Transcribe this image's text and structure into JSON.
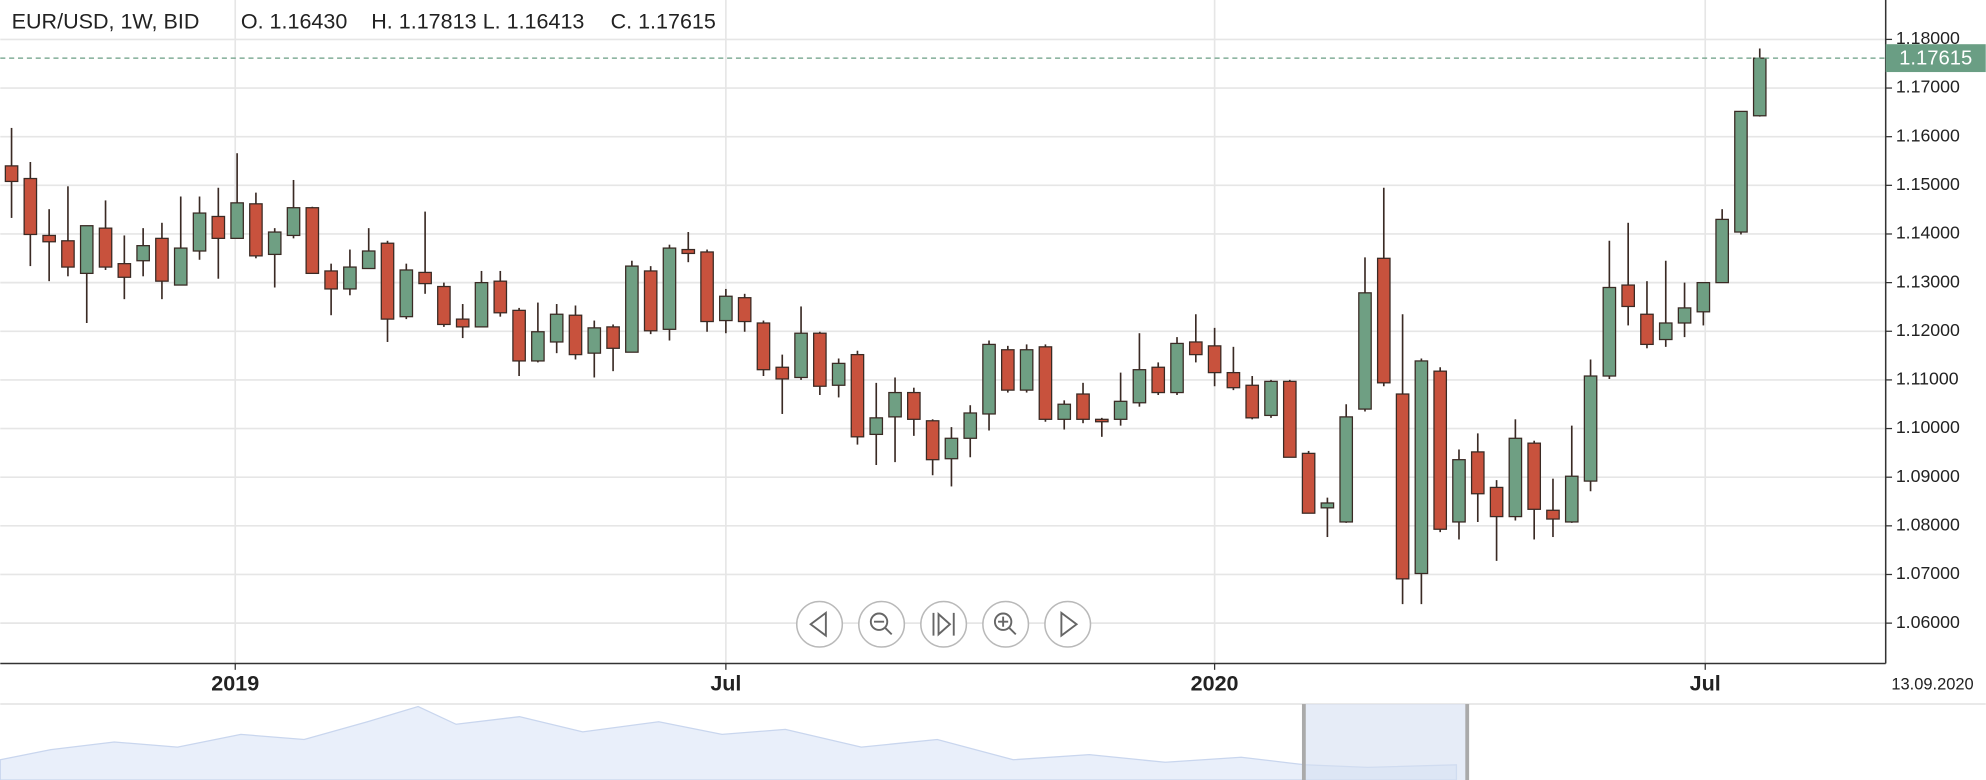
{
  "chart_data": {
    "type": "candlestick",
    "title": "EUR/USD, 1W, BID",
    "last_labels": {
      "open": "O. 1.16430",
      "high": "H. 1.17813",
      "low": "L. 1.16413",
      "close": "C. 1.17615"
    },
    "range_end": "13.09.2020",
    "colors": {
      "up": "#6f9f83",
      "down": "#c8523d",
      "outline": "#3a2a24",
      "last_price": "#6a9e84"
    },
    "grid": true,
    "categories": [
      null,
      null,
      null,
      null,
      null,
      null,
      null,
      null,
      null,
      null,
      null,
      null,
      null,
      null,
      null,
      null,
      null,
      null,
      null,
      null,
      null,
      null,
      null,
      null,
      null,
      null,
      null,
      null,
      null,
      null,
      null,
      null,
      null,
      null,
      null,
      null,
      null,
      null,
      null,
      null,
      null,
      null,
      null,
      null,
      null,
      null,
      null,
      null,
      null,
      null,
      null,
      null,
      null,
      null,
      null,
      null,
      null,
      null,
      null,
      null,
      null,
      null,
      null,
      null,
      null,
      null,
      null,
      null,
      null,
      null,
      null,
      null,
      null,
      null,
      null,
      null,
      null,
      null,
      null,
      null,
      null,
      null,
      null,
      null,
      null,
      null,
      null,
      null,
      null,
      null,
      null,
      null,
      null,
      null
    ],
    "open": [
      1.154,
      1.1514,
      1.1397,
      1.1386,
      1.1319,
      1.1412,
      1.1339,
      1.1345,
      1.1391,
      1.1295,
      1.1365,
      1.1436,
      1.1391,
      1.1462,
      1.1358,
      1.1397,
      1.1454,
      1.1324,
      1.1287,
      1.1329,
      1.1381,
      1.123,
      1.1321,
      1.1292,
      1.1225,
      1.1209,
      1.1303,
      1.1243,
      1.1139,
      1.1178,
      1.1233,
      1.1155,
      1.1209,
      1.1157,
      1.1324,
      1.1204,
      1.1368,
      1.1363,
      1.1222,
      1.1269,
      1.1217,
      1.1126,
      1.1105,
      1.1196,
      1.1089,
      1.1152,
      1.0988,
      1.1024,
      1.1074,
      1.1016,
      1.0938,
      1.098,
      1.103,
      1.1162,
      1.1079,
      1.1168,
      1.1019,
      1.1071,
      1.1019,
      1.1019,
      1.1053,
      1.1126,
      1.1074,
      1.1178,
      1.117,
      1.1115,
      1.1089,
      1.1027,
      1.1097,
      1.0949,
      1.0837,
      1.0808,
      1.104,
      1.135,
      1.1071,
      1.0702,
      1.1118,
      1.0808,
      1.0952,
      1.0879,
      1.0819,
      1.097,
      1.0832,
      1.0808,
      1.0892,
      1.1108,
      1.1295,
      1.1235,
      1.1183,
      1.1217,
      1.124,
      1.13,
      1.1404,
      1.1643
    ],
    "high": [
      1.1618,
      1.1548,
      1.1451,
      1.1498,
      1.1417,
      1.1469,
      1.1397,
      1.1412,
      1.1423,
      1.1477,
      1.1477,
      1.1495,
      1.1566,
      1.1485,
      1.1412,
      1.1511,
      1.1456,
      1.1339,
      1.1368,
      1.1412,
      1.1386,
      1.1339,
      1.1446,
      1.13,
      1.1256,
      1.1324,
      1.1324,
      1.1248,
      1.1259,
      1.1256,
      1.1253,
      1.1222,
      1.1214,
      1.1345,
      1.1334,
      1.1378,
      1.1404,
      1.1368,
      1.1287,
      1.1277,
      1.1222,
      1.1152,
      1.1251,
      1.1199,
      1.1144,
      1.116,
      1.1094,
      1.1105,
      1.1084,
      1.1019,
      1.1003,
      1.1048,
      1.1181,
      1.117,
      1.1173,
      1.1173,
      1.1058,
      1.1094,
      1.1022,
      1.1115,
      1.1196,
      1.1136,
      1.1188,
      1.1235,
      1.1207,
      1.1168,
      1.1108,
      1.11,
      1.11,
      1.0954,
      1.0858,
      1.105,
      1.1352,
      1.1495,
      1.1235,
      1.1144,
      1.1126,
      1.0957,
      1.099,
      1.0894,
      1.1019,
      1.0975,
      1.0897,
      1.1006,
      1.1142,
      1.1386,
      1.1423,
      1.1303,
      1.1345,
      1.13,
      1.13,
      1.1451,
      1.1652,
      1.17813
    ],
    "low": [
      1.1433,
      1.1334,
      1.1303,
      1.1313,
      1.1217,
      1.1326,
      1.1266,
      1.1313,
      1.1266,
      1.1295,
      1.1347,
      1.1308,
      1.1391,
      1.135,
      1.129,
      1.1391,
      1.1319,
      1.1233,
      1.1274,
      1.1329,
      1.1178,
      1.1225,
      1.1277,
      1.1209,
      1.1186,
      1.1209,
      1.123,
      1.1108,
      1.1136,
      1.1155,
      1.1142,
      1.1105,
      1.1118,
      1.1157,
      1.1194,
      1.1181,
      1.1342,
      1.1199,
      1.1196,
      1.1199,
      1.1108,
      1.103,
      1.11,
      1.1069,
      1.1064,
      1.0967,
      1.0925,
      1.0931,
      1.0985,
      1.0904,
      1.0881,
      1.0941,
      1.0996,
      1.1074,
      1.1074,
      1.1014,
      1.0998,
      1.1011,
      1.0983,
      1.1006,
      1.1045,
      1.1069,
      1.1069,
      1.1136,
      1.1087,
      1.1079,
      1.1019,
      1.1022,
      1.0941,
      1.0826,
      1.0777,
      1.0806,
      1.1035,
      1.1087,
      1.0639,
      1.0639,
      1.0787,
      1.0772,
      1.0808,
      1.0728,
      1.0811,
      1.0772,
      1.0777,
      1.0806,
      1.0871,
      1.1102,
      1.1212,
      1.1165,
      1.1168,
      1.1188,
      1.1212,
      1.13,
      1.1399,
      1.16413
    ],
    "close": [
      1.1508,
      1.1399,
      1.1384,
      1.1332,
      1.1417,
      1.1332,
      1.1311,
      1.1376,
      1.1303,
      1.1371,
      1.1443,
      1.1391,
      1.1464,
      1.1355,
      1.1404,
      1.1454,
      1.1319,
      1.1287,
      1.1332,
      1.1365,
      1.1225,
      1.1326,
      1.1298,
      1.1214,
      1.1209,
      1.13,
      1.1238,
      1.1139,
      1.1199,
      1.1235,
      1.1152,
      1.1207,
      1.1165,
      1.1334,
      1.1201,
      1.1371,
      1.136,
      1.122,
      1.1272,
      1.122,
      1.1121,
      1.1102,
      1.1196,
      1.1087,
      1.1134,
      1.0983,
      1.1022,
      1.1074,
      1.1019,
      1.0936,
      1.098,
      1.1032,
      1.1173,
      1.1079,
      1.1162,
      1.1019,
      1.105,
      1.1019,
      1.1014,
      1.1056,
      1.1121,
      1.1074,
      1.1175,
      1.1152,
      1.1115,
      1.1084,
      1.1022,
      1.1097,
      1.0941,
      1.0826,
      1.0847,
      1.1024,
      1.1279,
      1.1094,
      1.0691,
      1.1139,
      1.0793,
      1.0936,
      1.0866,
      1.0819,
      1.098,
      1.0834,
      1.0814,
      1.0902,
      1.1108,
      1.129,
      1.1251,
      1.1173,
      1.1217,
      1.1248,
      1.13,
      1.143,
      1.1652,
      1.17615
    ],
    "xlim": [
      -0.6,
      99.7
    ],
    "xticks": [
      {
        "value": 11.9,
        "label": "2019"
      },
      {
        "value": 38.0,
        "label": "Jul"
      },
      {
        "value": 64.0,
        "label": "2020"
      },
      {
        "value": 90.1,
        "label": "Jul"
      }
    ],
    "ylim": [
      1.0517,
      1.1881
    ],
    "yticks": [
      {
        "value": 1.06,
        "label": "1.06000"
      },
      {
        "value": 1.07,
        "label": "1.07000"
      },
      {
        "value": 1.08,
        "label": "1.08000"
      },
      {
        "value": 1.09,
        "label": "1.09000"
      },
      {
        "value": 1.1,
        "label": "1.10000"
      },
      {
        "value": 1.11,
        "label": "1.11000"
      },
      {
        "value": 1.12,
        "label": "1.12000"
      },
      {
        "value": 1.13,
        "label": "1.13000"
      },
      {
        "value": 1.14,
        "label": "1.14000"
      },
      {
        "value": 1.15,
        "label": "1.15000"
      },
      {
        "value": 1.16,
        "label": "1.16000"
      },
      {
        "value": 1.17,
        "label": "1.17000"
      },
      {
        "value": 1.18,
        "label": "1.18000"
      }
    ]
  }
}
